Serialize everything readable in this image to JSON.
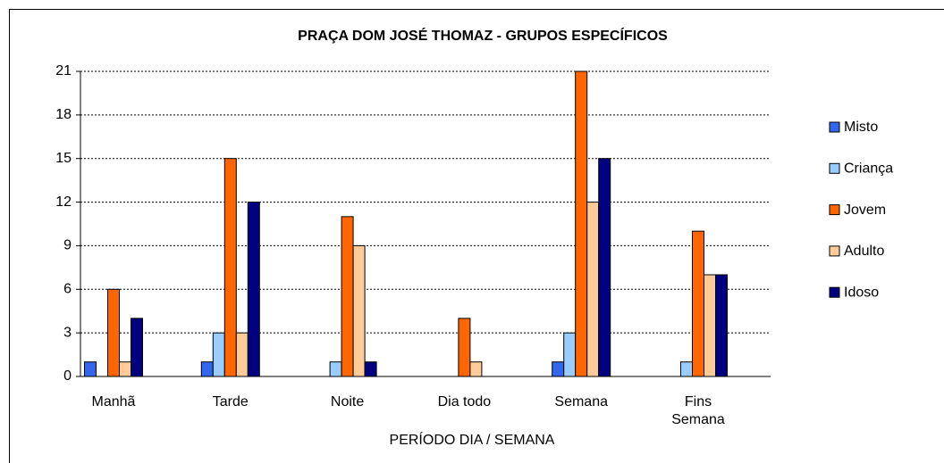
{
  "chart_data": {
    "type": "bar",
    "title": "PRAÇA DOM JOSÉ THOMAZ -  GRUPOS ESPECÍFICOS",
    "x_label": "PERÍODO DIA / SEMANA",
    "categories": [
      "Manhã",
      "Tarde",
      "Noite",
      "Dia todo",
      "Semana",
      "Fins Semana"
    ],
    "series": [
      {
        "name": "Misto",
        "color": "#3366ee",
        "values": [
          1,
          1,
          0,
          0,
          1,
          0
        ]
      },
      {
        "name": "Criança",
        "color": "#99ccff",
        "values": [
          0,
          3,
          1,
          0,
          3,
          1
        ]
      },
      {
        "name": "Jovem",
        "color": "#ff6600",
        "values": [
          6,
          15,
          11,
          4,
          21,
          10
        ]
      },
      {
        "name": "Adulto",
        "color": "#ffcc99",
        "values": [
          1,
          3,
          9,
          1,
          12,
          7
        ]
      },
      {
        "name": "Idoso",
        "color": "#000080",
        "values": [
          4,
          12,
          1,
          0,
          15,
          7
        ]
      }
    ],
    "ylim": [
      0,
      21
    ],
    "yticks": [
      0,
      3,
      6,
      9,
      12,
      15,
      18,
      21
    ],
    "grid": true,
    "legend": "right"
  }
}
